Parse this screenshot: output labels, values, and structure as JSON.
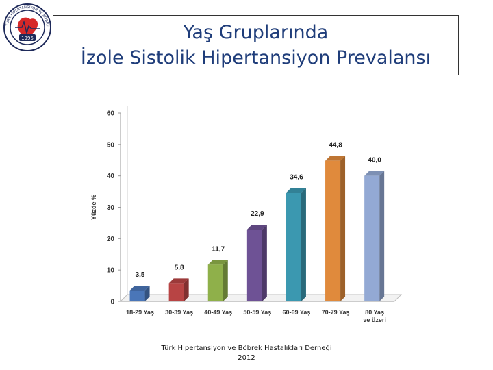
{
  "logo": {
    "year": "1995",
    "ring_text": "TÜRK HİPERTANSİYON VE BÖBREK HASTALIKLARI DERNEĞİ"
  },
  "header": {
    "title_line1": "Yaş Gruplarında",
    "title_line2": "İzole Sistolik Hipertansiyon Prevalansı"
  },
  "chart_data": {
    "type": "bar",
    "categories": [
      "18-29 Yaş",
      "30-39 Yaş",
      "40-49 Yaş",
      "50-59 Yaş",
      "60-69 Yaş",
      "70-79 Yaş",
      "80 Yaş ve üzeri"
    ],
    "values": [
      3.5,
      5.8,
      11.7,
      22.9,
      34.6,
      44.8,
      40.0
    ],
    "value_labels": [
      "3,5",
      "5.8",
      "11,7",
      "22,9",
      "34,6",
      "44,8",
      "40,0"
    ],
    "ylabel": "Yüzde %",
    "ylim": [
      0,
      60
    ],
    "yticks": [
      0,
      10,
      20,
      30,
      40,
      50,
      60
    ],
    "grid": false,
    "colors": [
      "#4a76b8",
      "#b84444",
      "#8fb04a",
      "#6e5295",
      "#3b98b0",
      "#e08a3c",
      "#93a9d4"
    ]
  },
  "footer": {
    "line1": "Türk Hipertansiyon ve Böbrek Hastalıkları Derneği",
    "line2": "2012"
  }
}
